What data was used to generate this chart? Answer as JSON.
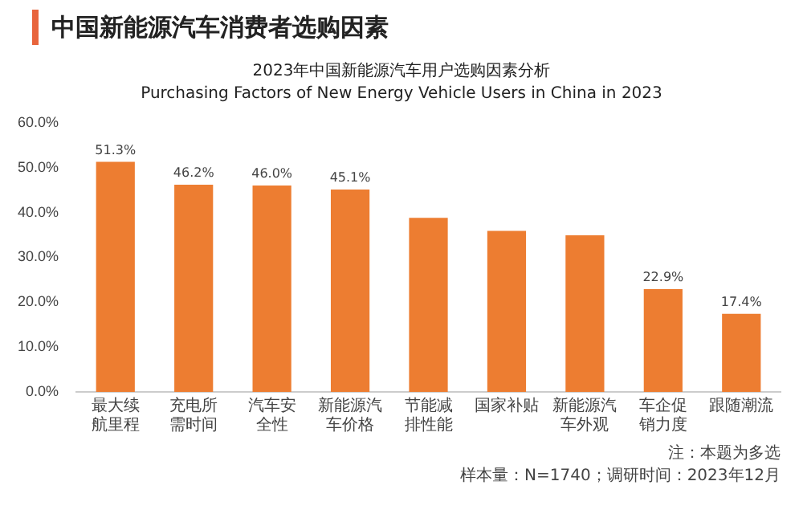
{
  "chart_data": {
    "type": "bar",
    "title": "中国新能源汽车消费者选购因素",
    "subtitle": "2023年中国新能源汽车用户选购因素分析\nPurchasing Factors of New Energy Vehicle Users in China in 2023",
    "categories": [
      "最大续航里程",
      "充电所需时间",
      "汽车安全性",
      "新能源汽车价格",
      "节能减排性能",
      "国家补贴",
      "新能源汽车外观",
      "车企促销力度",
      "跟随潮流"
    ],
    "values": [
      51.3,
      46.2,
      46.0,
      45.1,
      38.8,
      35.9,
      34.9,
      22.9,
      17.4
    ],
    "value_labels": [
      "51.3%",
      "46.2%",
      "46.0%",
      "45.1%",
      null,
      null,
      null,
      "22.9%",
      "17.4%"
    ],
    "color": "#ed7d31",
    "ylim": [
      0,
      60
    ],
    "yticks": [
      {
        "value": 0,
        "label": "0.0%"
      },
      {
        "value": 10,
        "label": "10.0%"
      },
      {
        "value": 20,
        "label": "20.0%"
      },
      {
        "value": 30,
        "label": "30.0%"
      },
      {
        "value": 40,
        "label": "40.0%"
      },
      {
        "value": 50,
        "label": "50.0%"
      },
      {
        "value": 60,
        "label": "60.0%"
      }
    ],
    "grid": false,
    "legend": false,
    "annotations": [
      "注：本题为多选",
      "样本量：N=1740；调研时间：2023年12月"
    ]
  }
}
